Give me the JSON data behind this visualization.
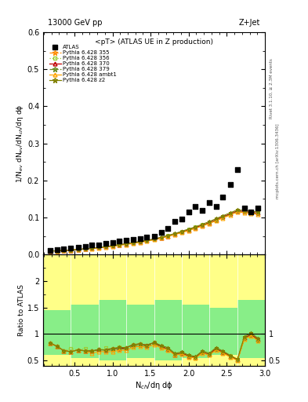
{
  "title_top": "13000 GeV pp",
  "title_right": "Z+Jet",
  "plot_title": "<pT> (ATLAS UE in Z production)",
  "ylabel_main": "1/N$_{ev}$ dN$_{ev}$/dN$_{ch}$/dη dϕ",
  "ylabel_ratio": "Ratio to ATLAS",
  "xlabel": "N$_{ch}$/dη dϕ",
  "right_label1": "Rivet 3.1.10, ≥ 2.3M events",
  "right_label2": "mcplots.cern.ch [arXiv:1306.3436]",
  "atlas_x": [
    0.18,
    0.27,
    0.36,
    0.45,
    0.55,
    0.64,
    0.73,
    0.82,
    0.91,
    1.0,
    1.09,
    1.18,
    1.27,
    1.36,
    1.45,
    1.55,
    1.64,
    1.73,
    1.82,
    1.91,
    2.0,
    2.09,
    2.18,
    2.27,
    2.36,
    2.45,
    2.55,
    2.64,
    2.73,
    2.82,
    2.91
  ],
  "atlas_y": [
    0.012,
    0.013,
    0.016,
    0.018,
    0.02,
    0.022,
    0.025,
    0.027,
    0.03,
    0.033,
    0.036,
    0.039,
    0.04,
    0.043,
    0.048,
    0.05,
    0.06,
    0.07,
    0.09,
    0.095,
    0.115,
    0.13,
    0.12,
    0.14,
    0.13,
    0.155,
    0.19,
    0.23,
    0.125,
    0.115,
    0.125
  ],
  "pythia_x": [
    0.18,
    0.27,
    0.36,
    0.45,
    0.55,
    0.64,
    0.73,
    0.82,
    0.91,
    1.0,
    1.09,
    1.18,
    1.27,
    1.36,
    1.45,
    1.55,
    1.64,
    1.73,
    1.82,
    1.91,
    2.0,
    2.09,
    2.18,
    2.27,
    2.36,
    2.45,
    2.55,
    2.64,
    2.73,
    2.82,
    2.91
  ],
  "p355_y": [
    0.01,
    0.01,
    0.011,
    0.012,
    0.014,
    0.015,
    0.017,
    0.019,
    0.021,
    0.023,
    0.026,
    0.028,
    0.031,
    0.034,
    0.037,
    0.041,
    0.045,
    0.05,
    0.055,
    0.06,
    0.066,
    0.072,
    0.078,
    0.085,
    0.092,
    0.1,
    0.108,
    0.116,
    0.114,
    0.112,
    0.11
  ],
  "p356_y": [
    0.01,
    0.01,
    0.011,
    0.013,
    0.014,
    0.016,
    0.017,
    0.019,
    0.022,
    0.024,
    0.027,
    0.029,
    0.032,
    0.035,
    0.038,
    0.042,
    0.046,
    0.051,
    0.056,
    0.062,
    0.068,
    0.074,
    0.08,
    0.087,
    0.095,
    0.103,
    0.111,
    0.12,
    0.117,
    0.115,
    0.112
  ],
  "p370_y": [
    0.01,
    0.01,
    0.011,
    0.012,
    0.014,
    0.015,
    0.017,
    0.019,
    0.021,
    0.024,
    0.026,
    0.029,
    0.032,
    0.035,
    0.038,
    0.042,
    0.046,
    0.05,
    0.055,
    0.061,
    0.067,
    0.073,
    0.079,
    0.086,
    0.094,
    0.102,
    0.11,
    0.118,
    0.116,
    0.114,
    0.112
  ],
  "p379_y": [
    0.01,
    0.01,
    0.011,
    0.012,
    0.014,
    0.015,
    0.017,
    0.019,
    0.021,
    0.023,
    0.026,
    0.028,
    0.031,
    0.034,
    0.037,
    0.041,
    0.045,
    0.05,
    0.055,
    0.06,
    0.066,
    0.072,
    0.078,
    0.085,
    0.092,
    0.1,
    0.108,
    0.116,
    0.114,
    0.112,
    0.11
  ],
  "pambt1_y": [
    0.01,
    0.01,
    0.011,
    0.012,
    0.014,
    0.015,
    0.016,
    0.018,
    0.02,
    0.022,
    0.025,
    0.027,
    0.03,
    0.033,
    0.036,
    0.04,
    0.044,
    0.049,
    0.054,
    0.059,
    0.065,
    0.071,
    0.077,
    0.084,
    0.091,
    0.099,
    0.107,
    0.115,
    0.113,
    0.111,
    0.109
  ],
  "pz2_y": [
    0.01,
    0.01,
    0.011,
    0.012,
    0.014,
    0.015,
    0.017,
    0.019,
    0.021,
    0.024,
    0.027,
    0.029,
    0.032,
    0.035,
    0.038,
    0.042,
    0.047,
    0.052,
    0.057,
    0.063,
    0.069,
    0.075,
    0.082,
    0.089,
    0.097,
    0.105,
    0.113,
    0.121,
    0.119,
    0.117,
    0.115
  ],
  "color_355": "#FF8C00",
  "color_356": "#9ACD32",
  "color_370": "#C00000",
  "color_379": "#6B8E23",
  "color_ambt1": "#FFA500",
  "color_z2": "#808000",
  "yellow_band_edges": [
    0.09,
    0.45,
    0.82,
    1.18,
    1.55,
    1.91,
    2.27,
    2.64,
    3.0
  ],
  "yellow_band_top": [
    2.5,
    2.5,
    2.5,
    2.5,
    2.5,
    2.5,
    2.5,
    2.5
  ],
  "yellow_band_bot": [
    0.4,
    0.4,
    0.4,
    0.4,
    0.4,
    0.4,
    0.4,
    0.4
  ],
  "green_band_edges": [
    0.09,
    0.45,
    0.82,
    1.18,
    1.55,
    1.91,
    2.27,
    2.64,
    3.0
  ],
  "green_band_top": [
    1.45,
    1.55,
    1.65,
    1.55,
    1.65,
    1.55,
    1.5,
    1.65
  ],
  "green_band_bot": [
    0.6,
    0.55,
    0.5,
    0.55,
    0.5,
    0.55,
    0.6,
    0.55
  ],
  "ylim_main": [
    0.0,
    0.6
  ],
  "ylim_ratio": [
    0.4,
    2.5
  ],
  "yticks_main": [
    0.0,
    0.1,
    0.2,
    0.3,
    0.4,
    0.5,
    0.6
  ],
  "yticks_ratio": [
    0.5,
    1.0,
    1.5,
    2.0
  ],
  "xlim": [
    0.09,
    3.0
  ],
  "xticks": [
    0.5,
    1.0,
    1.5,
    2.0,
    2.5,
    3.0
  ]
}
